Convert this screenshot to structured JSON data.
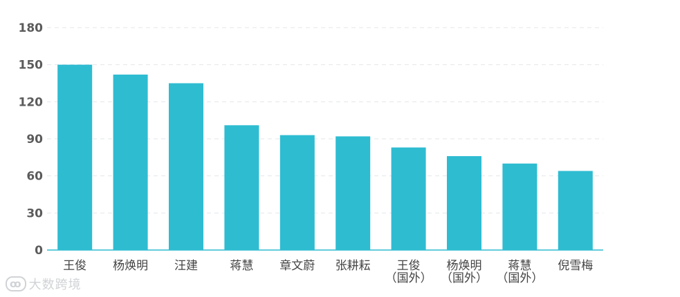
{
  "chart_data": {
    "type": "bar",
    "categories": [
      "王俊",
      "杨焕明",
      "汪建",
      "蒋慧",
      "章文蔚",
      "张耕耘",
      "王俊（国外）",
      "杨焕明（国外）",
      "蒋慧（国外）",
      "倪雪梅"
    ],
    "category_lines": [
      [
        "王俊"
      ],
      [
        "杨焕明"
      ],
      [
        "汪建"
      ],
      [
        "蒋慧"
      ],
      [
        "章文蔚"
      ],
      [
        "张耕耘"
      ],
      [
        "王俊",
        "（国外）"
      ],
      [
        "杨焕明",
        "（国外）"
      ],
      [
        "蒋慧",
        "（国外）"
      ],
      [
        "倪雪梅"
      ]
    ],
    "values": [
      150,
      142,
      135,
      101,
      93,
      92,
      83,
      76,
      70,
      64
    ],
    "title": "",
    "xlabel": "",
    "ylabel": "",
    "ylim": [
      0,
      180
    ],
    "yticks": [
      0,
      30,
      60,
      90,
      120,
      150,
      180
    ],
    "grid": true,
    "bar_color": "#2ebcd1",
    "grid_color": "#e3e6ea"
  },
  "watermark": {
    "icon": "logo-icon",
    "text": "大数跨境"
  }
}
